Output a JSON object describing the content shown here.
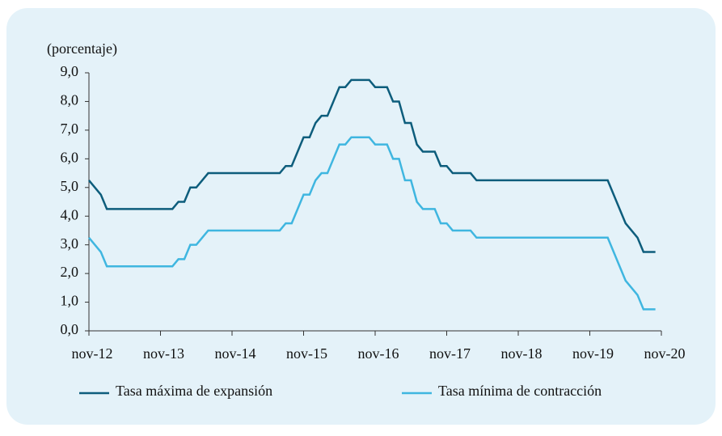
{
  "chart_data": {
    "type": "line",
    "y_axis_label": "(porcentaje)",
    "categories": [
      "nov-12",
      null,
      null,
      null,
      null,
      null,
      null,
      null,
      null,
      null,
      null,
      null,
      "nov-13",
      null,
      null,
      null,
      null,
      null,
      null,
      null,
      null,
      null,
      null,
      null,
      "nov-14",
      null,
      null,
      null,
      null,
      null,
      null,
      null,
      null,
      null,
      null,
      null,
      "nov-15",
      null,
      null,
      null,
      null,
      null,
      null,
      null,
      null,
      null,
      null,
      null,
      "nov-16",
      null,
      null,
      null,
      null,
      null,
      null,
      null,
      null,
      null,
      null,
      null,
      "nov-17",
      null,
      null,
      null,
      null,
      null,
      null,
      null,
      null,
      null,
      null,
      null,
      "nov-18",
      null,
      null,
      null,
      null,
      null,
      null,
      null,
      null,
      null,
      null,
      null,
      "nov-19",
      null,
      null,
      null,
      null,
      null,
      null,
      null,
      null,
      null,
      null,
      null,
      "nov-20"
    ],
    "series": [
      {
        "name": "Tasa máxima de expansión",
        "color": "#0d5d7c",
        "values": [
          5.25,
          5,
          4.75,
          4.25,
          4.25,
          4.25,
          4.25,
          4.25,
          4.25,
          4.25,
          4.25,
          4.25,
          4.25,
          4.25,
          4.25,
          4.5,
          4.5,
          5,
          5,
          5.25,
          5.5,
          5.5,
          5.5,
          5.5,
          5.5,
          5.5,
          5.5,
          5.5,
          5.5,
          5.5,
          5.5,
          5.5,
          5.5,
          5.75,
          5.75,
          6.25,
          6.75,
          6.75,
          7.25,
          7.5,
          7.5,
          8,
          8.5,
          8.5,
          8.75,
          8.75,
          8.75,
          8.75,
          8.5,
          8.5,
          8.5,
          8,
          8,
          7.25,
          7.25,
          6.5,
          6.25,
          6.25,
          6.25,
          5.75,
          5.75,
          5.5,
          5.5,
          5.5,
          5.5,
          5.25,
          5.25,
          5.25,
          5.25,
          5.25,
          5.25,
          5.25,
          5.25,
          5.25,
          5.25,
          5.25,
          5.25,
          5.25,
          5.25,
          5.25,
          5.25,
          5.25,
          5.25,
          5.25,
          5.25,
          5.25,
          5.25,
          5.25,
          4.75,
          4.25,
          3.75,
          3.5,
          3.25,
          2.75,
          2.75,
          2.75,
          null
        ]
      },
      {
        "name": "Tasa mínima de contracción",
        "color": "#3fb6e0",
        "values": [
          3.25,
          3,
          2.75,
          2.25,
          2.25,
          2.25,
          2.25,
          2.25,
          2.25,
          2.25,
          2.25,
          2.25,
          2.25,
          2.25,
          2.25,
          2.5,
          2.5,
          3,
          3,
          3.25,
          3.5,
          3.5,
          3.5,
          3.5,
          3.5,
          3.5,
          3.5,
          3.5,
          3.5,
          3.5,
          3.5,
          3.5,
          3.5,
          3.75,
          3.75,
          4.25,
          4.75,
          4.75,
          5.25,
          5.5,
          5.5,
          6,
          6.5,
          6.5,
          6.75,
          6.75,
          6.75,
          6.75,
          6.5,
          6.5,
          6.5,
          6,
          6,
          5.25,
          5.25,
          4.5,
          4.25,
          4.25,
          4.25,
          3.75,
          3.75,
          3.5,
          3.5,
          3.5,
          3.5,
          3.25,
          3.25,
          3.25,
          3.25,
          3.25,
          3.25,
          3.25,
          3.25,
          3.25,
          3.25,
          3.25,
          3.25,
          3.25,
          3.25,
          3.25,
          3.25,
          3.25,
          3.25,
          3.25,
          3.25,
          3.25,
          3.25,
          3.25,
          2.75,
          2.25,
          1.75,
          1.5,
          1.25,
          0.75,
          0.75,
          0.75,
          null
        ]
      }
    ],
    "ylim": [
      0,
      9
    ],
    "yticks": [
      {
        "value": 0,
        "label": "0,0"
      },
      {
        "value": 1,
        "label": "1,0"
      },
      {
        "value": 2,
        "label": "2,0"
      },
      {
        "value": 3,
        "label": "3,0"
      },
      {
        "value": 4,
        "label": "4,0"
      },
      {
        "value": 5,
        "label": "5,0"
      },
      {
        "value": 6,
        "label": "6,0"
      },
      {
        "value": 7,
        "label": "7,0"
      },
      {
        "value": 8,
        "label": "8,0"
      },
      {
        "value": 9,
        "label": "9,0"
      }
    ],
    "grid": false,
    "legend": "bottom"
  }
}
